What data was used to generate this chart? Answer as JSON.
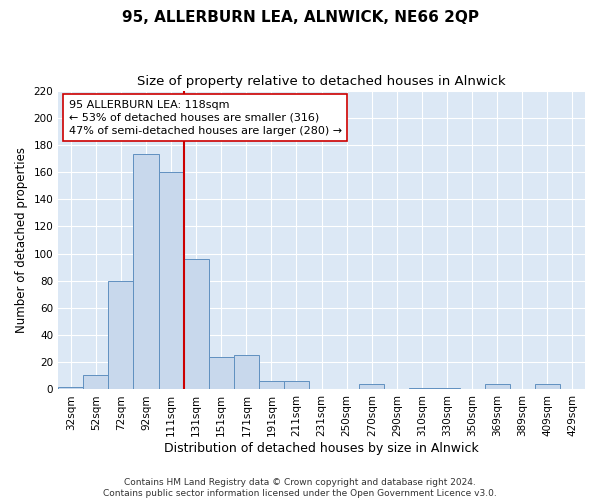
{
  "title": "95, ALLERBURN LEA, ALNWICK, NE66 2QP",
  "subtitle": "Size of property relative to detached houses in Alnwick",
  "xlabel": "Distribution of detached houses by size in Alnwick",
  "ylabel": "Number of detached properties",
  "bar_labels": [
    "32sqm",
    "52sqm",
    "72sqm",
    "92sqm",
    "111sqm",
    "131sqm",
    "151sqm",
    "171sqm",
    "191sqm",
    "211sqm",
    "231sqm",
    "250sqm",
    "270sqm",
    "290sqm",
    "310sqm",
    "330sqm",
    "350sqm",
    "369sqm",
    "389sqm",
    "409sqm",
    "429sqm"
  ],
  "bar_values": [
    2,
    11,
    80,
    173,
    160,
    96,
    24,
    25,
    6,
    6,
    0,
    0,
    4,
    0,
    1,
    1,
    0,
    4,
    0,
    4,
    0
  ],
  "ylim": [
    0,
    220
  ],
  "yticks": [
    0,
    20,
    40,
    60,
    80,
    100,
    120,
    140,
    160,
    180,
    200,
    220
  ],
  "bar_color": "#c8d8ec",
  "bar_edge_color": "#6090c0",
  "vline_x": 4.5,
  "vline_color": "#cc0000",
  "annotation_line1": "95 ALLERBURN LEA: 118sqm",
  "annotation_line2": "← 53% of detached houses are smaller (316)",
  "annotation_line3": "47% of semi-detached houses are larger (280) →",
  "annotation_box_color": "#ffffff",
  "annotation_box_edge_color": "#cc0000",
  "footer_line1": "Contains HM Land Registry data © Crown copyright and database right 2024.",
  "footer_line2": "Contains public sector information licensed under the Open Government Licence v3.0.",
  "figure_bg_color": "#ffffff",
  "plot_bg_color": "#dce8f5",
  "grid_color": "#ffffff",
  "title_fontsize": 11,
  "subtitle_fontsize": 9.5,
  "tick_label_fontsize": 7.5,
  "ylabel_fontsize": 8.5,
  "xlabel_fontsize": 9,
  "annotation_fontsize": 8,
  "footer_fontsize": 6.5
}
